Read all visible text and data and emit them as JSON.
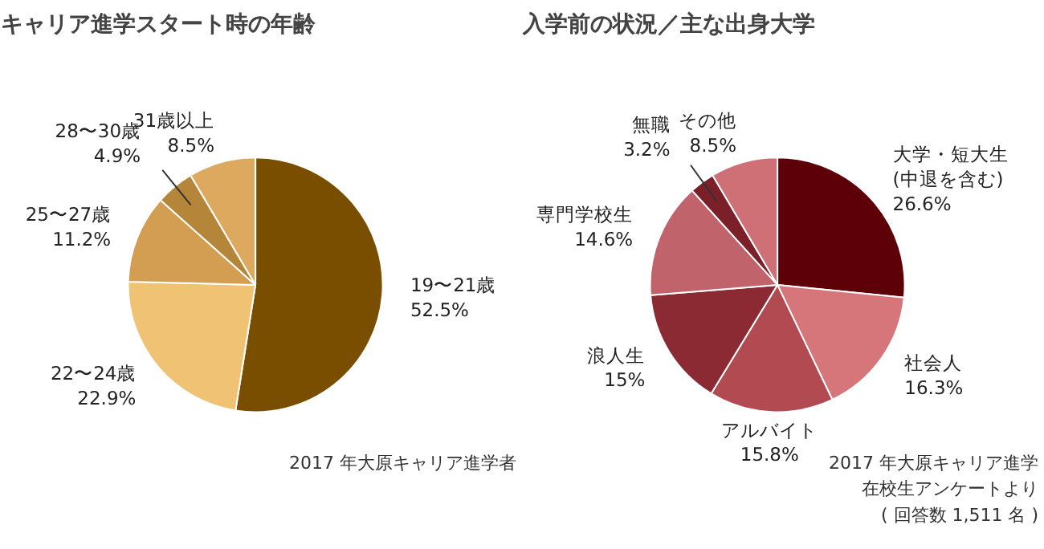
{
  "chart_data": [
    {
      "type": "pie",
      "title": "キャリア進学スタート時の年齢",
      "categories": [
        "19〜21歳",
        "22〜24歳",
        "25〜27歳",
        "28〜30歳",
        "31歳以上"
      ],
      "values": [
        52.5,
        22.9,
        11.2,
        4.9,
        8.5
      ],
      "value_labels": [
        "52.5%",
        "22.9%",
        "11.2%",
        "4.9%",
        "8.5%"
      ],
      "colors": [
        "#7a4e00",
        "#f0c374",
        "#d39e52",
        "#b5853a",
        "#dca95f"
      ],
      "annotations": [
        "2017 年大原キャリア進学者"
      ]
    },
    {
      "type": "pie",
      "title": "入学前の状況／主な出身大学",
      "categories": [
        "大学・短大生\n(中退を含む)",
        "社会人",
        "アルバイト",
        "浪人生",
        "専門学校生",
        "無職",
        "その他"
      ],
      "values": [
        26.6,
        16.3,
        15.8,
        15,
        14.6,
        3.2,
        8.5
      ],
      "value_labels": [
        "26.6%",
        "16.3%",
        "15.8%",
        "15%",
        "14.6%",
        "3.2%",
        "8.5%"
      ],
      "colors": [
        "#5e0008",
        "#d6767a",
        "#b24a52",
        "#8b2a32",
        "#c1636a",
        "#7b2029",
        "#cf7077"
      ],
      "annotations": [
        "2017 年大原キャリア進学",
        "在校生アンケートより",
        "( 回答数 1,511 名 )"
      ]
    }
  ]
}
